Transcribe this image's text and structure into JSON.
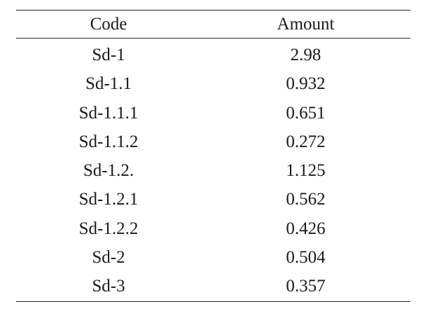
{
  "table": {
    "headers": {
      "code": "Code",
      "amount": "Amount"
    },
    "rows": [
      {
        "code": "Sd-1",
        "amount": "2.98"
      },
      {
        "code": "Sd-1.1",
        "amount": "0.932"
      },
      {
        "code": "Sd-1.1.1",
        "amount": "0.651"
      },
      {
        "code": "Sd-1.1.2",
        "amount": "0.272"
      },
      {
        "code": "Sd-1.2.",
        "amount": "1.125"
      },
      {
        "code": "Sd-1.2.1",
        "amount": "0.562"
      },
      {
        "code": "Sd-1.2.2",
        "amount": "0.426"
      },
      {
        "code": "Sd-2",
        "amount": "0.504"
      },
      {
        "code": "Sd-3",
        "amount": "0.357"
      }
    ]
  },
  "colors": {
    "text": "#1a1a1a",
    "rule": "#222222",
    "background": "#ffffff"
  }
}
